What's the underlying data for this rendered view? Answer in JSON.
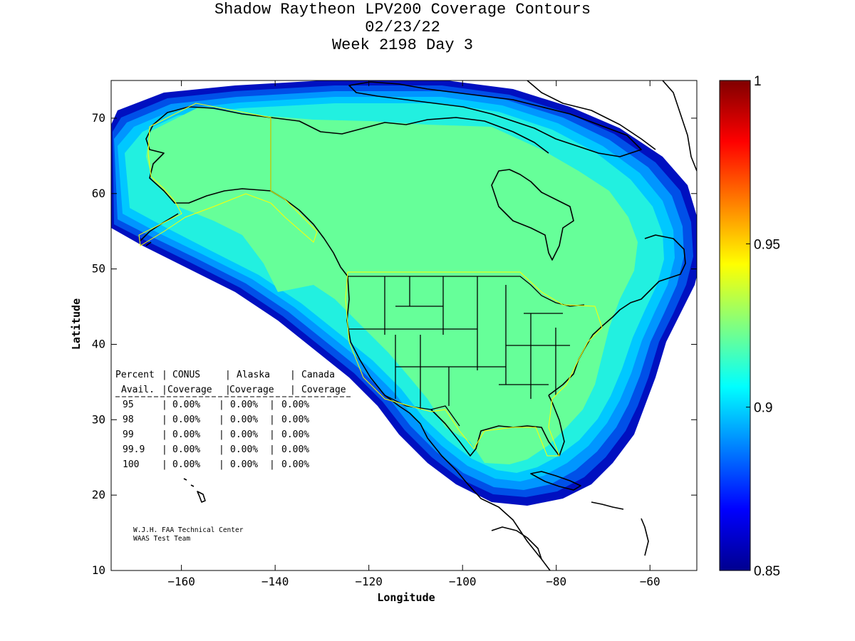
{
  "title": {
    "line1": "Shadow Raytheon LPV200 Coverage Contours",
    "line2": "02/23/22",
    "line3": "Week 2198 Day 3"
  },
  "axes": {
    "xlabel": "Longitude",
    "ylabel": "Latitude",
    "xlim": [
      -175,
      -50
    ],
    "ylim": [
      10,
      75
    ],
    "xticks": [
      -160,
      -140,
      -120,
      -100,
      -80,
      -60
    ],
    "yticks": [
      10,
      20,
      30,
      40,
      50,
      60,
      70
    ]
  },
  "colorbar": {
    "min": 0.85,
    "max": 1,
    "ticks": [
      "0.85",
      "0.9",
      "0.95",
      "1"
    ],
    "colormap": [
      "#00008f",
      "#0000ff",
      "#0080ff",
      "#00ffff",
      "#80ff80",
      "#ffff00",
      "#ff8000",
      "#ff0000",
      "#800000"
    ]
  },
  "coverage_colors": {
    "core": "#66ff99",
    "band1": "#22f0e0",
    "band2": "#00c8ff",
    "band3": "#0096ff",
    "band4": "#0050e8",
    "band5": "#0010c0"
  },
  "table": {
    "header1": [
      "Percent",
      "CONUS",
      "Alaska",
      "Canada"
    ],
    "header2": [
      "Avail.",
      "Coverage",
      "Coverage",
      "Coverage"
    ],
    "rows": [
      [
        "95",
        "0.00%",
        "0.00%",
        "0.00%"
      ],
      [
        "98",
        "0.00%",
        "0.00%",
        "0.00%"
      ],
      [
        "99",
        "0.00%",
        "0.00%",
        "0.00%"
      ],
      [
        "99.9",
        "0.00%",
        "0.00%",
        "0.00%"
      ],
      [
        "100",
        "0.00%",
        "0.00%",
        "0.00%"
      ]
    ]
  },
  "credit": {
    "line1": "W.J.H. FAA Technical Center",
    "line2": "WAAS Test Team"
  }
}
